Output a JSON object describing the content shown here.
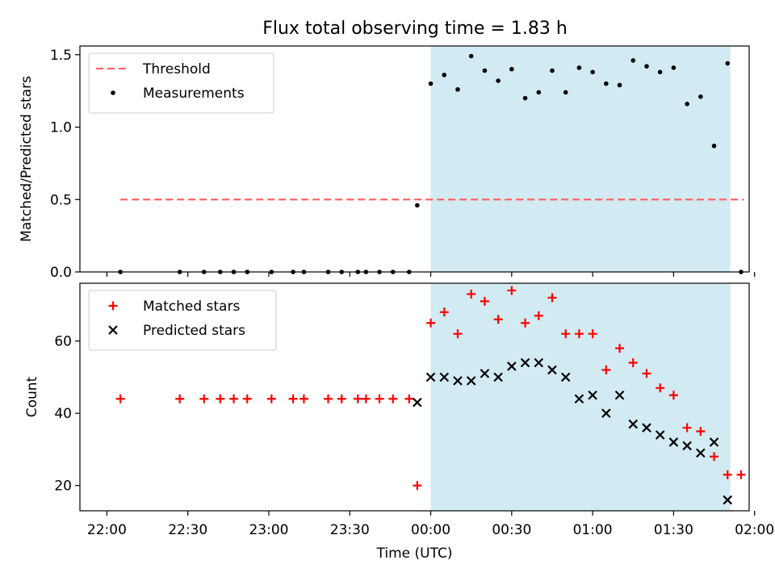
{
  "title": "Flux total observing time = 1.83 h",
  "colors": {
    "shade": "#add8e6",
    "threshold": "#ff6666",
    "measurement": "#000000",
    "matched": "#ff0000",
    "predicted": "#000000"
  },
  "chart_data": [
    {
      "type": "scatter",
      "ylabel": "Matched/Predicted stars",
      "ylim": [
        0,
        1.56
      ],
      "yticks": [
        0.0,
        0.5,
        1.0,
        1.5
      ],
      "ytick_labels": [
        "0.0",
        "0.5",
        "1.0",
        "1.5"
      ],
      "xlim": [
        "21:50",
        "01:58"
      ],
      "shaded_interval": [
        "00:00",
        "01:51"
      ],
      "legend_position": "upper left",
      "threshold": {
        "name": "Threshold",
        "value": 0.5,
        "x_range": [
          "22:05",
          "01:56"
        ],
        "style": "dashed"
      },
      "series": [
        {
          "name": "Measurements",
          "marker": "dot",
          "points": [
            [
              "22:05",
              0
            ],
            [
              "22:27",
              0
            ],
            [
              "22:36",
              0
            ],
            [
              "22:42",
              0
            ],
            [
              "22:47",
              0
            ],
            [
              "22:52",
              0
            ],
            [
              "23:01",
              0
            ],
            [
              "23:09",
              0
            ],
            [
              "23:13",
              0
            ],
            [
              "23:22",
              0
            ],
            [
              "23:27",
              0
            ],
            [
              "23:33",
              0
            ],
            [
              "23:36",
              0
            ],
            [
              "23:41",
              0
            ],
            [
              "23:46",
              0
            ],
            [
              "23:52",
              0
            ],
            [
              "23:55",
              0.46
            ],
            [
              "00:00",
              1.3
            ],
            [
              "00:05",
              1.36
            ],
            [
              "00:10",
              1.26
            ],
            [
              "00:15",
              1.49
            ],
            [
              "00:20",
              1.39
            ],
            [
              "00:25",
              1.32
            ],
            [
              "00:30",
              1.4
            ],
            [
              "00:35",
              1.2
            ],
            [
              "00:40",
              1.24
            ],
            [
              "00:45",
              1.39
            ],
            [
              "00:50",
              1.24
            ],
            [
              "00:55",
              1.41
            ],
            [
              "01:00",
              1.38
            ],
            [
              "01:05",
              1.3
            ],
            [
              "01:10",
              1.29
            ],
            [
              "01:15",
              1.46
            ],
            [
              "01:20",
              1.42
            ],
            [
              "01:25",
              1.38
            ],
            [
              "01:30",
              1.41
            ],
            [
              "01:35",
              1.16
            ],
            [
              "01:40",
              1.21
            ],
            [
              "01:45",
              0.87
            ],
            [
              "01:50",
              1.44
            ],
            [
              "01:55",
              0
            ]
          ]
        }
      ]
    },
    {
      "type": "scatter",
      "xlabel": "Time (UTC)",
      "ylabel": "Count",
      "ylim": [
        13,
        76
      ],
      "yticks": [
        20,
        40,
        60
      ],
      "ytick_labels": [
        "20",
        "40",
        "60"
      ],
      "xlim": [
        "21:50",
        "01:58"
      ],
      "xticks": [
        "22:00",
        "22:30",
        "23:00",
        "23:30",
        "00:00",
        "00:30",
        "01:00",
        "01:30",
        "02:00"
      ],
      "xtick_labels": [
        "22:00",
        "22:30",
        "23:00",
        "23:30",
        "00:00",
        "00:30",
        "01:00",
        "01:30",
        "02:00"
      ],
      "shaded_interval": [
        "00:00",
        "01:51"
      ],
      "legend_position": "upper left",
      "series": [
        {
          "name": "Matched stars",
          "marker": "plus",
          "points": [
            [
              "22:05",
              44
            ],
            [
              "22:27",
              44
            ],
            [
              "22:36",
              44
            ],
            [
              "22:42",
              44
            ],
            [
              "22:47",
              44
            ],
            [
              "22:52",
              44
            ],
            [
              "23:01",
              44
            ],
            [
              "23:09",
              44
            ],
            [
              "23:13",
              44
            ],
            [
              "23:22",
              44
            ],
            [
              "23:27",
              44
            ],
            [
              "23:33",
              44
            ],
            [
              "23:36",
              44
            ],
            [
              "23:41",
              44
            ],
            [
              "23:46",
              44
            ],
            [
              "23:52",
              44
            ],
            [
              "23:55",
              20
            ],
            [
              "00:00",
              65
            ],
            [
              "00:05",
              68
            ],
            [
              "00:10",
              62
            ],
            [
              "00:15",
              73
            ],
            [
              "00:20",
              71
            ],
            [
              "00:25",
              66
            ],
            [
              "00:30",
              74
            ],
            [
              "00:35",
              65
            ],
            [
              "00:40",
              67
            ],
            [
              "00:45",
              72
            ],
            [
              "00:50",
              62
            ],
            [
              "00:55",
              62
            ],
            [
              "01:00",
              62
            ],
            [
              "01:05",
              52
            ],
            [
              "01:10",
              58
            ],
            [
              "01:15",
              54
            ],
            [
              "01:20",
              51
            ],
            [
              "01:25",
              47
            ],
            [
              "01:30",
              45
            ],
            [
              "01:35",
              36
            ],
            [
              "01:40",
              35
            ],
            [
              "01:45",
              28
            ],
            [
              "01:50",
              23
            ],
            [
              "01:55",
              23
            ]
          ]
        },
        {
          "name": "Predicted stars",
          "marker": "x",
          "points": [
            [
              "23:55",
              43
            ],
            [
              "00:00",
              50
            ],
            [
              "00:05",
              50
            ],
            [
              "00:10",
              49
            ],
            [
              "00:15",
              49
            ],
            [
              "00:20",
              51
            ],
            [
              "00:25",
              50
            ],
            [
              "00:30",
              53
            ],
            [
              "00:35",
              54
            ],
            [
              "00:40",
              54
            ],
            [
              "00:45",
              52
            ],
            [
              "00:50",
              50
            ],
            [
              "00:55",
              44
            ],
            [
              "01:00",
              45
            ],
            [
              "01:05",
              40
            ],
            [
              "01:10",
              45
            ],
            [
              "01:15",
              37
            ],
            [
              "01:20",
              36
            ],
            [
              "01:25",
              34
            ],
            [
              "01:30",
              32
            ],
            [
              "01:35",
              31
            ],
            [
              "01:40",
              29
            ],
            [
              "01:45",
              32
            ],
            [
              "01:50",
              16
            ]
          ]
        }
      ]
    }
  ]
}
